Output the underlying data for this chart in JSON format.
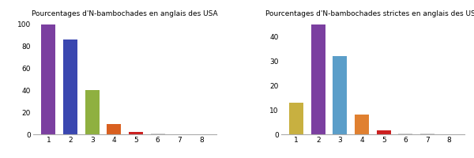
{
  "left_title": "Pourcentages d'N-bambochades en anglais des USA",
  "right_title": "Pourcentages d'N-bambochades strictes en anglais des USA",
  "categories": [
    1,
    2,
    3,
    4,
    5,
    6,
    7,
    8
  ],
  "left_values": [
    100,
    86,
    40,
    9,
    2,
    0.4,
    0.2,
    0.15
  ],
  "right_values": [
    13,
    45,
    32,
    8,
    1.5,
    0.4,
    0.2,
    0.15
  ],
  "left_colors": [
    "#7B3FA0",
    "#3A47B0",
    "#8FB040",
    "#D96020",
    "#CC2020",
    "#CCCCCC",
    "#CCCCCC",
    "#CCCCCC"
  ],
  "right_colors": [
    "#C8B040",
    "#7B3FA0",
    "#5B9EC9",
    "#E08030",
    "#CC2020",
    "#CCCCCC",
    "#CCCCCC",
    "#CCCCCC"
  ],
  "bg_color": "#FFFFFF",
  "title_fontsize": 6.5,
  "tick_fontsize": 6.5
}
